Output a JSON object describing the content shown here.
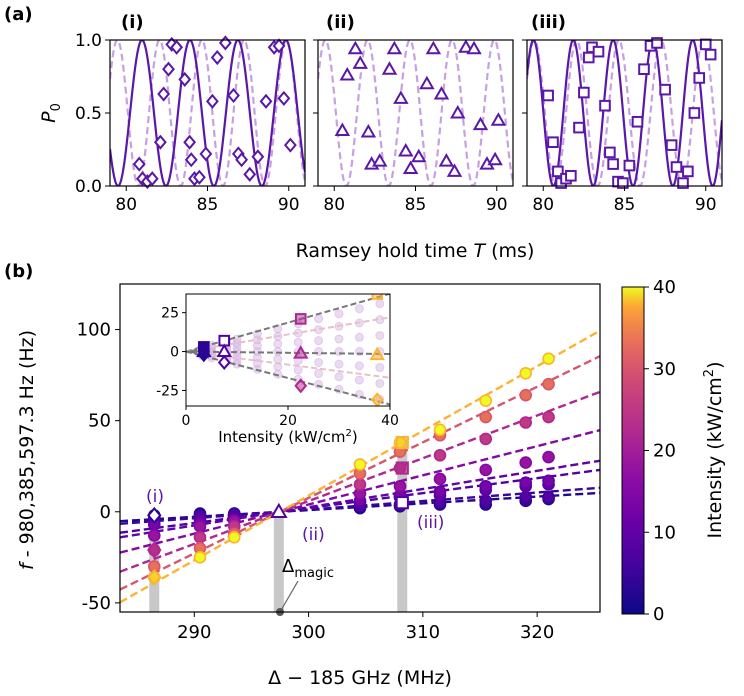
{
  "colors": {
    "dark_purple": "#5a17a8",
    "light_purple": "#c7a0e2",
    "gray_marker": "#c8c8c8",
    "magic_marker": "#555555"
  },
  "labels": {
    "panel_a": "(a)",
    "panel_b": "(b)",
    "sub_i": "(i)",
    "sub_ii": "(ii)",
    "sub_iii": "(iii)",
    "marker_i": "(i)",
    "marker_ii": "(ii)",
    "marker_iii": "(iii)",
    "ylabel_a": "P",
    "ylabel_a_sub": "0",
    "xlabel_a_pre": "Ramsey hold time ",
    "xlabel_a_var": "T",
    "xlabel_a_post": " (ms)",
    "ylabel_b_var": "f",
    "ylabel_b_rest": " - 980,385,597.3 Hz (Hz)",
    "xlabel_b": "Δ − 185 GHz (MHz)",
    "magic_main": "Δ",
    "magic_sub": "magic",
    "inset_xlabel_pre": "Intensity (kW/cm",
    "inset_xlabel_sup": "2",
    "inset_xlabel_post": ")",
    "colorbar_label_pre": "Intensity (kW/cm",
    "colorbar_label_sup": "2",
    "colorbar_label_post": ")"
  },
  "chart_data": [
    {
      "type": "line",
      "panel": "(i)",
      "marker": "diamond",
      "xlim": [
        79,
        91
      ],
      "ylim": [
        0,
        1
      ],
      "xticks": [
        80,
        85,
        90
      ],
      "yticks": [
        0.0,
        0.5,
        1.0
      ],
      "ytick_labels": [
        "0.0",
        "0.5",
        "1.0"
      ],
      "fit_period_ms": 2.95,
      "fit_phase_ms": 80.97,
      "ref_period_ms": 2.6,
      "ref_phase_ms": 79.45,
      "x": [
        80.8,
        81.0,
        81.3,
        81.6,
        82.1,
        82.3,
        82.6,
        82.8,
        83.1,
        83.6,
        83.9,
        84.0,
        84.2,
        84.5,
        84.9,
        85.3,
        85.6,
        86.1,
        86.6,
        86.9,
        87.1,
        87.6,
        88.1,
        88.6,
        89.1,
        89.4,
        89.7,
        90.1
      ],
      "y": [
        0.15,
        0.05,
        0.03,
        0.05,
        0.3,
        0.63,
        0.8,
        0.97,
        0.95,
        0.73,
        0.3,
        0.18,
        0.05,
        0.06,
        0.22,
        0.58,
        0.88,
        0.98,
        0.62,
        0.22,
        0.18,
        0.08,
        0.2,
        0.58,
        0.95,
        0.96,
        0.6,
        0.28
      ]
    },
    {
      "type": "scatter",
      "panel": "(ii)",
      "marker": "triangle",
      "xlim": [
        79,
        91
      ],
      "ylim": [
        0,
        1
      ],
      "xticks": [
        80,
        85,
        90
      ],
      "ref_period_ms": 2.6,
      "ref_phase_ms": 79.45,
      "x": [
        80.5,
        80.8,
        81.3,
        81.6,
        82.1,
        82.3,
        82.8,
        83.4,
        83.7,
        84.1,
        84.4,
        84.7,
        85.2,
        85.7,
        86.1,
        86.6,
        86.9,
        87.4,
        87.6,
        88.1,
        88.6,
        89.0,
        89.4,
        89.9,
        90.1
      ],
      "y": [
        0.38,
        0.76,
        0.94,
        0.84,
        0.37,
        0.15,
        0.17,
        0.8,
        0.94,
        0.6,
        0.24,
        0.12,
        0.2,
        0.7,
        0.94,
        0.63,
        0.17,
        0.1,
        0.5,
        0.95,
        0.94,
        0.42,
        0.15,
        0.18,
        0.45
      ]
    },
    {
      "type": "line",
      "panel": "(iii)",
      "marker": "square",
      "xlim": [
        79,
        91
      ],
      "ylim": [
        0,
        1
      ],
      "xticks": [
        80,
        85,
        90
      ],
      "fit_period_ms": 2.45,
      "fit_phase_ms": 79.4,
      "ref_period_ms": 2.6,
      "ref_phase_ms": 79.45,
      "x": [
        80.3,
        80.6,
        80.9,
        81.1,
        81.4,
        81.7,
        82.2,
        82.5,
        82.8,
        83.0,
        83.4,
        83.8,
        84.1,
        84.3,
        84.6,
        84.9,
        85.3,
        85.8,
        86.2,
        86.6,
        87.0,
        87.5,
        87.9,
        88.2,
        88.6,
        88.9,
        89.3,
        89.6,
        90.0,
        90.3
      ],
      "y": [
        0.62,
        0.3,
        0.1,
        0.02,
        0.05,
        0.07,
        0.4,
        0.64,
        0.88,
        0.95,
        0.92,
        0.55,
        0.23,
        0.15,
        0.03,
        0.02,
        0.14,
        0.44,
        0.8,
        0.96,
        0.98,
        0.66,
        0.28,
        0.13,
        0.02,
        0.1,
        0.5,
        0.74,
        0.97,
        0.9
      ]
    },
    {
      "type": "scatter",
      "panel": "(b)",
      "xlim": [
        283.5,
        325.5
      ],
      "ylim": [
        -55,
        125
      ],
      "xticks": [
        290,
        300,
        310,
        320
      ],
      "yticks": [
        -50,
        0,
        50,
        100
      ],
      "crossing": [
        297.5,
        0
      ],
      "series": [
        {
          "intensity": 2,
          "slope": 0.37,
          "points": [
            [
              286.5,
              -2
            ],
            [
              290.5,
              -1
            ],
            [
              293.5,
              -1
            ],
            [
              304.5,
              2
            ],
            [
              308.0,
              3
            ],
            [
              311.5,
              4
            ],
            [
              315.5,
              4
            ],
            [
              319,
              6
            ],
            [
              321,
              7
            ]
          ]
        },
        {
          "intensity": 5,
          "slope": 0.47,
          "points": [
            [
              286.5,
              -3
            ],
            [
              290.5,
              -2
            ],
            [
              293.5,
              -1
            ],
            [
              304.5,
              3
            ],
            [
              308.0,
              4
            ],
            [
              311.5,
              5
            ],
            [
              315.5,
              6
            ],
            [
              319,
              8
            ],
            [
              321,
              8
            ]
          ]
        },
        {
          "intensity": 8,
          "slope": 0.82,
          "points": [
            [
              286.5,
              -5
            ],
            [
              290.5,
              -4
            ],
            [
              293.5,
              -3
            ],
            [
              304.5,
              5
            ],
            [
              308.0,
              8
            ],
            [
              311.5,
              9
            ],
            [
              315.5,
              12
            ],
            [
              319,
              14
            ],
            [
              321,
              15
            ]
          ]
        },
        {
          "intensity": 10,
          "slope": 1.0,
          "points": [
            [
              286.5,
              -7
            ],
            [
              290.5,
              -6
            ],
            [
              293.5,
              -4
            ],
            [
              304.5,
              6
            ],
            [
              308.0,
              9
            ],
            [
              311.5,
              11
            ],
            [
              315.5,
              14
            ],
            [
              319,
              16
            ],
            [
              321,
              17
            ]
          ]
        },
        {
          "intensity": 15,
          "slope": 1.6,
          "points": [
            [
              286.5,
              -13
            ],
            [
              290.5,
              -8
            ],
            [
              293.5,
              -5
            ],
            [
              304.5,
              10
            ],
            [
              308.0,
              14
            ],
            [
              311.5,
              18
            ],
            [
              315.5,
              23
            ],
            [
              319,
              27
            ],
            [
              321,
              30
            ]
          ]
        },
        {
          "intensity": 22,
          "slope": 2.35,
          "points": [
            [
              286.5,
              -21
            ],
            [
              290.5,
              -14
            ],
            [
              293.5,
              -8
            ],
            [
              304.5,
              15
            ],
            [
              308.0,
              24
            ],
            [
              311.5,
              31
            ],
            [
              315.5,
              40
            ],
            [
              319,
              49
            ],
            [
              321,
              52
            ]
          ]
        },
        {
          "intensity": 30,
          "slope": 3.05,
          "points": [
            [
              286.5,
              -30
            ],
            [
              290.5,
              -20
            ],
            [
              293.5,
              -12
            ],
            [
              304.5,
              21
            ],
            [
              308.0,
              33
            ],
            [
              311.5,
              42
            ],
            [
              315.5,
              52
            ],
            [
              319,
              64
            ],
            [
              321,
              70
            ]
          ]
        },
        {
          "intensity": 38,
          "slope": 3.55,
          "points": [
            [
              286.5,
              -36
            ],
            [
              290.5,
              -25
            ],
            [
              293.5,
              -14
            ],
            [
              304.5,
              26
            ],
            [
              308.0,
              38
            ],
            [
              311.5,
              45
            ],
            [
              315.5,
              61
            ],
            [
              319,
              76
            ],
            [
              321,
              84
            ]
          ]
        }
      ],
      "open_markers": [
        {
          "x": 286.5,
          "y": -2,
          "intensity": 3,
          "shape": "diamond"
        },
        {
          "x": 286.5,
          "y": -21,
          "intensity": 22,
          "shape": "diamond"
        },
        {
          "x": 286.5,
          "y": -36,
          "intensity": 38,
          "shape": "diamond"
        },
        {
          "x": 297.4,
          "y": 0,
          "intensity": 8,
          "shape": "triangle"
        },
        {
          "x": 308.2,
          "y": 5,
          "intensity": 8,
          "shape": "square"
        },
        {
          "x": 308.2,
          "y": 24,
          "intensity": 22,
          "shape": "square"
        },
        {
          "x": 308.2,
          "y": 38,
          "intensity": 38,
          "shape": "square"
        }
      ],
      "highlight_bars": [
        286.5,
        297.4,
        308.2
      ],
      "magic_x": 297.5,
      "colorbar": {
        "range": [
          0,
          40
        ],
        "ticks": [
          0,
          10,
          20,
          30,
          40
        ]
      }
    },
    {
      "type": "scatter",
      "panel": "inset",
      "xlim": [
        0,
        40
      ],
      "ylim": [
        -35,
        37
      ],
      "xticks": [
        0,
        20,
        40
      ],
      "yticks": [
        -25,
        0,
        25
      ],
      "lines": [
        {
          "slope": 0.93,
          "label": "square"
        },
        {
          "slope": 0.55,
          "label": "square-mid"
        },
        {
          "slope": -0.04,
          "label": "triangle"
        },
        {
          "slope": -0.42,
          "label": "diamond-mid"
        },
        {
          "slope": -0.85,
          "label": "diamond"
        }
      ],
      "points": [
        {
          "x": 3.5,
          "y": -2,
          "shape": "diamond",
          "intensity": 3
        },
        {
          "x": 3.5,
          "y": 3,
          "shape": "square",
          "intensity": 3
        },
        {
          "x": 3.5,
          "y": 0,
          "shape": "triangle",
          "intensity": 3
        },
        {
          "x": 7.5,
          "y": 7,
          "shape": "square",
          "intensity": 8
        },
        {
          "x": 7.5,
          "y": -7,
          "shape": "diamond",
          "intensity": 8
        },
        {
          "x": 7.5,
          "y": 0,
          "shape": "triangle",
          "intensity": 8
        },
        {
          "x": 22.5,
          "y": 21,
          "shape": "square",
          "intensity": 22
        },
        {
          "x": 22.5,
          "y": -1,
          "shape": "triangle",
          "intensity": 22
        },
        {
          "x": 22.5,
          "y": -22,
          "shape": "diamond",
          "intensity": 22
        },
        {
          "x": 37.5,
          "y": 37,
          "shape": "square",
          "intensity": 38
        },
        {
          "x": 37.5,
          "y": -2,
          "shape": "triangle",
          "intensity": 38
        },
        {
          "x": 37.5,
          "y": -31,
          "shape": "diamond",
          "intensity": 38
        }
      ],
      "faded_x": [
        3,
        5,
        8,
        10,
        14,
        18,
        22,
        26,
        30,
        34,
        38
      ]
    }
  ]
}
